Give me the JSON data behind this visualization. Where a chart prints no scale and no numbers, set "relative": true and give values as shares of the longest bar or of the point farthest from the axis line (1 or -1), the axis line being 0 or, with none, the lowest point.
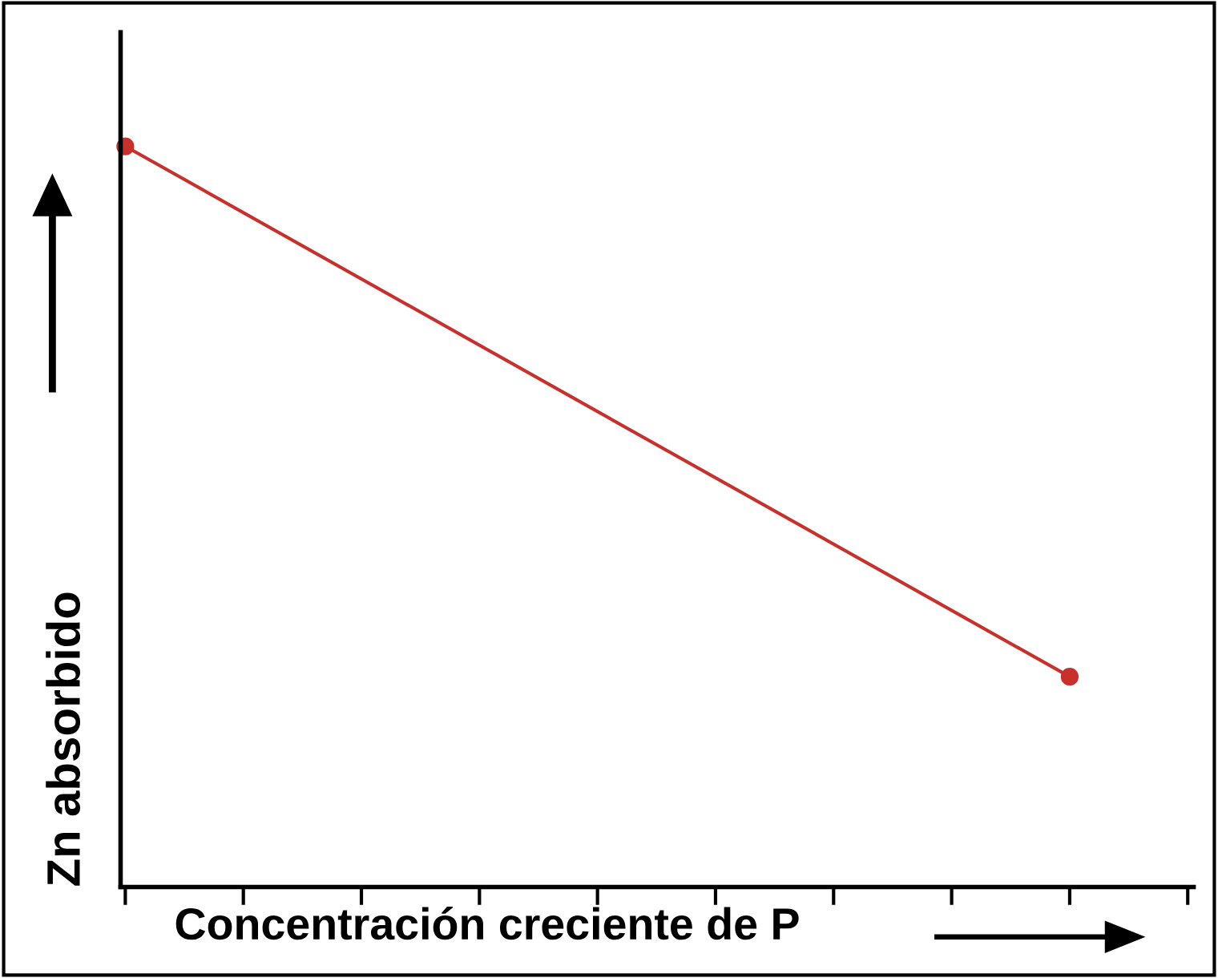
{
  "chart_data": {
    "type": "line",
    "relative": true,
    "xlabel": "Concentración creciente de P",
    "ylabel": "Zn absorbido",
    "categories": [
      null,
      null,
      null,
      null,
      null,
      null,
      null,
      null,
      null,
      null
    ],
    "series": [
      {
        "color": "#c8302c",
        "values": [
          1,
          null,
          null,
          null,
          null,
          null,
          null,
          null,
          0.284,
          null
        ]
      }
    ],
    "marker": "circle",
    "line_style": "solid",
    "grid": false,
    "legend": false
  }
}
